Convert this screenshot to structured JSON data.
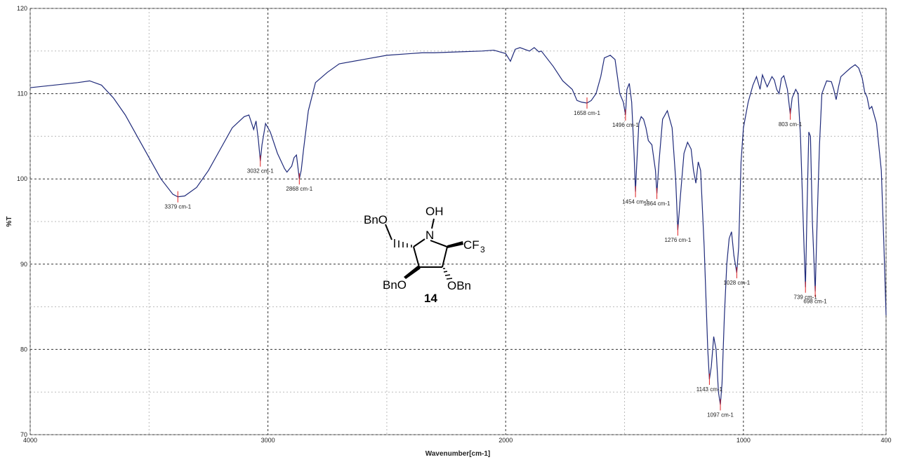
{
  "chart_data": {
    "type": "line",
    "xlabel": "Wavenumber[cm-1]",
    "ylabel": "%T",
    "xlim": [
      4000,
      400
    ],
    "ylim": [
      70,
      120
    ],
    "xticks": [
      4000,
      3000,
      2000,
      1000,
      400
    ],
    "yticks": [
      70,
      80,
      90,
      100,
      110,
      120
    ],
    "x_minor_grid": [
      3500,
      2500,
      1500,
      500
    ],
    "y_minor_grid": [
      75,
      85,
      95,
      105,
      115
    ],
    "grid": true,
    "x": [
      4000,
      3900,
      3800,
      3750,
      3700,
      3650,
      3600,
      3550,
      3500,
      3450,
      3400,
      3379,
      3350,
      3300,
      3250,
      3200,
      3150,
      3100,
      3080,
      3060,
      3050,
      3040,
      3032,
      3025,
      3010,
      2990,
      2960,
      2930,
      2920,
      2900,
      2890,
      2880,
      2868,
      2860,
      2850,
      2830,
      2800,
      2750,
      2700,
      2600,
      2500,
      2400,
      2350,
      2300,
      2200,
      2100,
      2050,
      2000,
      1980,
      1960,
      1940,
      1900,
      1880,
      1860,
      1850,
      1800,
      1760,
      1720,
      1700,
      1680,
      1658,
      1640,
      1620,
      1600,
      1585,
      1560,
      1540,
      1520,
      1505,
      1496,
      1490,
      1480,
      1470,
      1460,
      1454,
      1450,
      1440,
      1430,
      1420,
      1410,
      1400,
      1385,
      1370,
      1364,
      1355,
      1340,
      1320,
      1300,
      1285,
      1276,
      1265,
      1250,
      1235,
      1220,
      1210,
      1200,
      1190,
      1180,
      1165,
      1150,
      1143,
      1135,
      1125,
      1115,
      1105,
      1097,
      1090,
      1080,
      1070,
      1060,
      1050,
      1040,
      1028,
      1020,
      1010,
      1000,
      980,
      960,
      945,
      930,
      920,
      900,
      880,
      870,
      860,
      850,
      840,
      830,
      815,
      803,
      795,
      780,
      770,
      760,
      745,
      739,
      732,
      725,
      718,
      710,
      698,
      690,
      680,
      670,
      650,
      630,
      620,
      610,
      600,
      590,
      570,
      550,
      530,
      515,
      500,
      490,
      480,
      470,
      460,
      440,
      420,
      410,
      400
    ],
    "series": [
      {
        "color": "#1f2a7a",
        "values": [
          110.7,
          111.0,
          111.3,
          111.5,
          111.0,
          109.5,
          107.5,
          105,
          102.5,
          100,
          98.2,
          97.9,
          98.0,
          99.0,
          101,
          103.5,
          106,
          107.3,
          107.5,
          105.8,
          106.8,
          104.5,
          102.1,
          104,
          106.5,
          105.5,
          103,
          101.2,
          100.8,
          101.5,
          102.5,
          102.8,
          100.0,
          101,
          103.5,
          108,
          111.3,
          112.5,
          113.5,
          114,
          114.5,
          114.7,
          114.8,
          114.8,
          114.9,
          115,
          115.1,
          114.7,
          113.8,
          115.2,
          115.4,
          115,
          115.4,
          114.9,
          115,
          113.2,
          111.5,
          110.5,
          109.2,
          109,
          108.9,
          109.2,
          110,
          112,
          114.2,
          114.5,
          114,
          110,
          109,
          107.5,
          110.5,
          111.2,
          109,
          103,
          98.5,
          101,
          106.5,
          107.3,
          107,
          106,
          104.5,
          104,
          101,
          98.3,
          102,
          107,
          108,
          106,
          100,
          94.0,
          98,
          103,
          104.3,
          103.5,
          101,
          99.5,
          102,
          101,
          92,
          80,
          76.5,
          78,
          81.5,
          80,
          75,
          73.5,
          76,
          84,
          90,
          93,
          93.8,
          91,
          89.0,
          92,
          102,
          106,
          109,
          111,
          112,
          110.5,
          112.2,
          110.8,
          112,
          111.6,
          110.5,
          110,
          111.8,
          112.1,
          110.5,
          107.6,
          109.5,
          110.5,
          110,
          105,
          92,
          87.3,
          97,
          105.5,
          105,
          95,
          86.8,
          95,
          104,
          110,
          111.5,
          111.4,
          110.5,
          109.3,
          110.8,
          112,
          112.5,
          113,
          113.4,
          113,
          111.8,
          110.2,
          109.6,
          108.2,
          108.5,
          106.5,
          101,
          93,
          84
        ]
      }
    ],
    "annotation_color": "#e02020",
    "annotations": [
      {
        "x": 3379,
        "y": 97.9,
        "text": "3379 cm-1"
      },
      {
        "x": 3032,
        "y": 102.1,
        "text": "3032 cm-1"
      },
      {
        "x": 2868,
        "y": 100.0,
        "text": "2868 cm-1"
      },
      {
        "x": 1658,
        "y": 108.9,
        "text": "1658 cm-1"
      },
      {
        "x": 1496,
        "y": 107.5,
        "text": "1496 cm-1"
      },
      {
        "x": 1454,
        "y": 98.5,
        "text": "1454 cm-1"
      },
      {
        "x": 1364,
        "y": 98.3,
        "text": "1364 cm-1"
      },
      {
        "x": 1276,
        "y": 94.0,
        "text": "1276 cm-1"
      },
      {
        "x": 1143,
        "y": 76.5,
        "text": "1143 cm-1"
      },
      {
        "x": 1097,
        "y": 73.5,
        "text": "1097 cm-1"
      },
      {
        "x": 1028,
        "y": 89.0,
        "text": "1028 cm-1"
      },
      {
        "x": 803,
        "y": 107.6,
        "text": "803 cm-1"
      },
      {
        "x": 739,
        "y": 87.3,
        "text": "739 cm-1"
      },
      {
        "x": 698,
        "y": 86.8,
        "text": "698 cm-1"
      }
    ],
    "structure": {
      "labels": [
        "BnO",
        "OH",
        "N",
        "CF",
        "3",
        "BnO",
        "OBn",
        "14"
      ]
    }
  }
}
